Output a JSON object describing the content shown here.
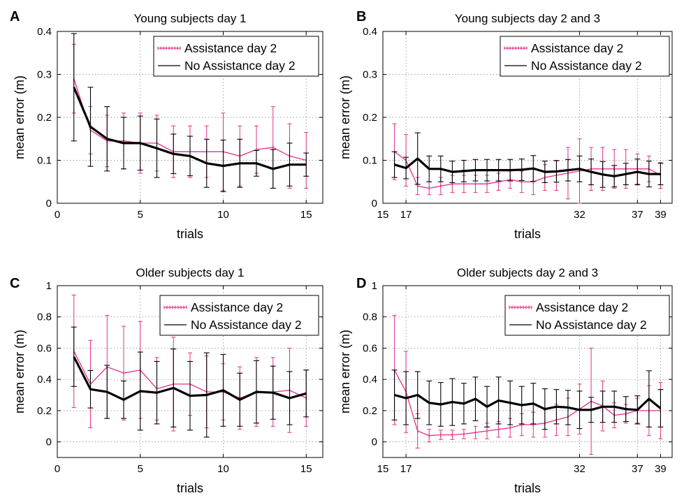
{
  "chart_data": [
    {
      "panel": "A",
      "type": "line",
      "title": "Young subjects day 1",
      "xlabel": "trials",
      "ylabel": "mean error (m)",
      "xlim": [
        0,
        16
      ],
      "ylim": [
        0,
        0.4
      ],
      "xticks": [
        0,
        5,
        10,
        15
      ],
      "yticks": [
        0,
        0.1,
        0.2,
        0.3,
        0.4
      ],
      "grid": true,
      "legend": "top-right",
      "series": [
        {
          "name": "Assistance day 2",
          "color": "#e0308a",
          "style": "dotted-with-markers",
          "x": [
            1,
            2,
            3,
            4,
            5,
            6,
            7,
            8,
            9,
            10,
            11,
            12,
            13,
            14,
            15
          ],
          "y": [
            0.29,
            0.17,
            0.145,
            0.145,
            0.14,
            0.14,
            0.12,
            0.12,
            0.12,
            0.12,
            0.11,
            0.125,
            0.13,
            0.11,
            0.1
          ],
          "err": [
            0.08,
            0.055,
            0.06,
            0.065,
            0.07,
            0.065,
            0.06,
            0.06,
            0.06,
            0.09,
            0.07,
            0.055,
            0.095,
            0.075,
            0.065
          ]
        },
        {
          "name": "No Assistance day 2",
          "color": "#000000",
          "style": "solid-thick",
          "x": [
            1,
            2,
            3,
            4,
            5,
            6,
            7,
            8,
            9,
            10,
            11,
            12,
            13,
            14,
            15
          ],
          "y": [
            0.27,
            0.178,
            0.15,
            0.14,
            0.14,
            0.128,
            0.115,
            0.11,
            0.093,
            0.087,
            0.093,
            0.093,
            0.08,
            0.09,
            0.09
          ],
          "err": [
            0.125,
            0.092,
            0.075,
            0.06,
            0.063,
            0.068,
            0.046,
            0.046,
            0.056,
            0.06,
            0.056,
            0.03,
            0.045,
            0.05,
            0.027
          ]
        }
      ]
    },
    {
      "panel": "B",
      "type": "line",
      "title": "Young subjects day 2 and 3",
      "xlabel": "trials",
      "ylabel": "mean error (m)",
      "xlim": [
        15,
        40
      ],
      "ylim": [
        0,
        0.4
      ],
      "xticks": [
        15,
        17,
        32,
        37,
        39
      ],
      "yticks": [
        0,
        0.1,
        0.2,
        0.3,
        0.4
      ],
      "grid": true,
      "legend": "top-right",
      "series": [
        {
          "name": "Assistance day 2",
          "color": "#e0308a",
          "style": "dotted-with-markers",
          "x": [
            16,
            17,
            18,
            19,
            20,
            21,
            22,
            23,
            24,
            25,
            26,
            27,
            28,
            29,
            30,
            31,
            32,
            33,
            34,
            35,
            36,
            37,
            38,
            39
          ],
          "y": [
            0.12,
            0.1,
            0.04,
            0.035,
            0.04,
            0.045,
            0.045,
            0.045,
            0.045,
            0.05,
            0.055,
            0.05,
            0.05,
            0.06,
            0.065,
            0.07,
            0.075,
            0.08,
            0.08,
            0.08,
            0.08,
            0.08,
            0.08,
            0.065
          ],
          "err": [
            0.065,
            0.06,
            0.02,
            0.015,
            0.02,
            0.02,
            0.02,
            0.02,
            0.02,
            0.02,
            0.02,
            0.025,
            0.03,
            0.03,
            0.035,
            0.06,
            0.075,
            0.05,
            0.05,
            0.045,
            0.045,
            0.035,
            0.03,
            0.03
          ]
        },
        {
          "name": "No Assistance day 2",
          "color": "#000000",
          "style": "solid-thick",
          "x": [
            16,
            17,
            18,
            19,
            20,
            21,
            22,
            23,
            24,
            25,
            26,
            27,
            28,
            29,
            30,
            31,
            32,
            33,
            34,
            35,
            36,
            37,
            38,
            39
          ],
          "y": [
            0.09,
            0.082,
            0.104,
            0.08,
            0.08,
            0.073,
            0.075,
            0.077,
            0.077,
            0.077,
            0.077,
            0.078,
            0.081,
            0.073,
            0.074,
            0.077,
            0.08,
            0.073,
            0.067,
            0.063,
            0.068,
            0.073,
            0.068,
            0.068
          ],
          "err": [
            0.03,
            0.025,
            0.06,
            0.03,
            0.03,
            0.025,
            0.025,
            0.025,
            0.025,
            0.025,
            0.025,
            0.025,
            0.03,
            0.025,
            0.025,
            0.025,
            0.03,
            0.03,
            0.03,
            0.025,
            0.025,
            0.03,
            0.03,
            0.025
          ]
        }
      ]
    },
    {
      "panel": "C",
      "type": "line",
      "title": "Older subjects day 1",
      "xlabel": "trials",
      "ylabel": "mean error (m)",
      "xlim": [
        0,
        16
      ],
      "ylim": [
        -0.1,
        1
      ],
      "xticks": [
        0,
        5,
        10,
        15
      ],
      "yticks": [
        0,
        0.2,
        0.4,
        0.6,
        0.8,
        1
      ],
      "grid": true,
      "legend": "top-right",
      "series": [
        {
          "name": "Assistance day 2",
          "color": "#e0308a",
          "style": "dotted-with-markers",
          "x": [
            1,
            2,
            3,
            4,
            5,
            6,
            7,
            8,
            9,
            10,
            11,
            12,
            13,
            14,
            15
          ],
          "y": [
            0.58,
            0.37,
            0.48,
            0.44,
            0.46,
            0.34,
            0.37,
            0.37,
            0.32,
            0.32,
            0.28,
            0.32,
            0.32,
            0.33,
            0.28
          ],
          "err": [
            0.36,
            0.28,
            0.33,
            0.3,
            0.31,
            0.2,
            0.3,
            0.2,
            0.23,
            0.18,
            0.2,
            0.22,
            0.22,
            0.27,
            0.18
          ]
        },
        {
          "name": "No Assistance day 2",
          "color": "#000000",
          "style": "solid-thick",
          "x": [
            1,
            2,
            3,
            4,
            5,
            6,
            7,
            8,
            9,
            10,
            11,
            12,
            13,
            14,
            15
          ],
          "y": [
            0.545,
            0.337,
            0.32,
            0.27,
            0.325,
            0.315,
            0.345,
            0.295,
            0.3,
            0.33,
            0.27,
            0.32,
            0.315,
            0.28,
            0.31
          ],
          "err": [
            0.19,
            0.12,
            0.17,
            0.12,
            0.25,
            0.2,
            0.25,
            0.22,
            0.27,
            0.23,
            0.17,
            0.2,
            0.17,
            0.17,
            0.15
          ]
        }
      ]
    },
    {
      "panel": "D",
      "type": "line",
      "title": "Older subjects day 2 and 3",
      "xlabel": "trials",
      "ylabel": "mean error (m)",
      "xlim": [
        15,
        40
      ],
      "ylim": [
        -0.1,
        1
      ],
      "xticks": [
        15,
        17,
        32,
        37,
        39
      ],
      "yticks": [
        0,
        0.2,
        0.4,
        0.6,
        0.8,
        1
      ],
      "grid": true,
      "legend": "top-right",
      "series": [
        {
          "name": "Assistance day 2",
          "color": "#e0308a",
          "style": "dotted-with-markers",
          "x": [
            16,
            17,
            18,
            19,
            20,
            21,
            22,
            23,
            24,
            25,
            26,
            27,
            28,
            29,
            30,
            31,
            32,
            33,
            34,
            35,
            36,
            37,
            38,
            39
          ],
          "y": [
            0.46,
            0.32,
            0.07,
            0.04,
            0.045,
            0.045,
            0.05,
            0.06,
            0.07,
            0.08,
            0.09,
            0.11,
            0.11,
            0.12,
            0.14,
            0.16,
            0.21,
            0.26,
            0.23,
            0.17,
            0.18,
            0.2,
            0.2,
            0.2
          ],
          "err": [
            0.35,
            0.26,
            0.11,
            0.04,
            0.03,
            0.03,
            0.03,
            0.04,
            0.05,
            0.05,
            0.06,
            0.07,
            0.08,
            0.09,
            0.1,
            0.12,
            0.16,
            0.34,
            0.16,
            0.08,
            0.06,
            0.08,
            0.16,
            0.18
          ]
        },
        {
          "name": "No Assistance day 2",
          "color": "#000000",
          "style": "solid-thick",
          "x": [
            16,
            17,
            18,
            19,
            20,
            21,
            22,
            23,
            24,
            25,
            26,
            27,
            28,
            29,
            30,
            31,
            32,
            33,
            34,
            35,
            36,
            37,
            38,
            39
          ],
          "y": [
            0.3,
            0.28,
            0.3,
            0.25,
            0.24,
            0.255,
            0.245,
            0.275,
            0.225,
            0.265,
            0.25,
            0.235,
            0.245,
            0.21,
            0.225,
            0.22,
            0.205,
            0.205,
            0.225,
            0.225,
            0.21,
            0.205,
            0.275,
            0.215
          ],
          "err": [
            0.16,
            0.17,
            0.15,
            0.14,
            0.14,
            0.15,
            0.13,
            0.14,
            0.13,
            0.15,
            0.14,
            0.12,
            0.13,
            0.13,
            0.11,
            0.11,
            0.12,
            0.08,
            0.1,
            0.1,
            0.08,
            0.09,
            0.18,
            0.12
          ]
        }
      ]
    }
  ]
}
